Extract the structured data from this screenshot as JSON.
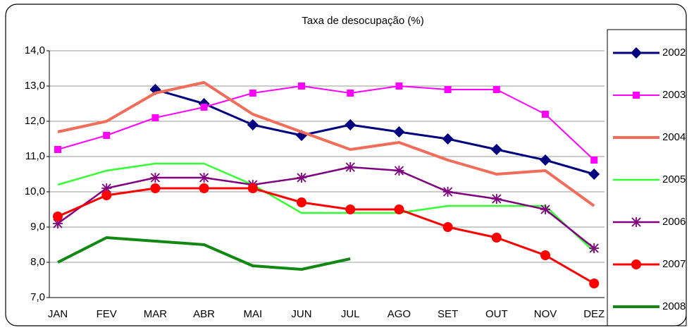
{
  "chart_data": {
    "type": "line",
    "title": "Taxa de desocupação (%)",
    "categories": [
      "JAN",
      "FEV",
      "MAR",
      "ABR",
      "MAI",
      "JUN",
      "JUL",
      "AGO",
      "SET",
      "OUT",
      "NOV",
      "DEZ"
    ],
    "ylim": [
      7,
      14
    ],
    "yticks": [
      {
        "value": 7,
        "label": "7,0"
      },
      {
        "value": 8,
        "label": "8,0"
      },
      {
        "value": 9,
        "label": "9,0"
      },
      {
        "value": 10,
        "label": "10,0"
      },
      {
        "value": 11,
        "label": "11,0"
      },
      {
        "value": 12,
        "label": "12,0"
      },
      {
        "value": 13,
        "label": "13,0"
      },
      {
        "value": 14,
        "label": "14,0"
      }
    ],
    "grid": true,
    "legend": "right",
    "series": [
      {
        "name": "2002",
        "color": "#000080",
        "marker": "diamond",
        "line_width": 3,
        "values": [
          null,
          null,
          12.9,
          12.5,
          11.9,
          11.6,
          11.9,
          11.7,
          11.5,
          11.2,
          10.9,
          10.5
        ]
      },
      {
        "name": "2003",
        "color": "#ff00ff",
        "marker": "square",
        "line_width": 2,
        "values": [
          11.2,
          11.6,
          12.1,
          12.4,
          12.8,
          13.0,
          12.8,
          13.0,
          12.9,
          12.9,
          12.2,
          10.9
        ]
      },
      {
        "name": "2004",
        "color": "#f26c5a",
        "marker": "none",
        "line_width": 4,
        "values": [
          11.7,
          12.0,
          12.8,
          13.1,
          12.2,
          11.7,
          11.2,
          11.4,
          10.9,
          10.5,
          10.6,
          9.6
        ]
      },
      {
        "name": "2005",
        "color": "#33ff33",
        "marker": "none",
        "line_width": 2.5,
        "values": [
          10.2,
          10.6,
          10.8,
          10.8,
          10.2,
          9.4,
          9.4,
          9.4,
          9.6,
          9.6,
          9.6,
          8.3
        ]
      },
      {
        "name": "2006",
        "color": "#800080",
        "marker": "star",
        "line_width": 2.5,
        "values": [
          9.1,
          10.1,
          10.4,
          10.4,
          10.2,
          10.4,
          10.7,
          10.6,
          10.0,
          9.8,
          9.5,
          8.4
        ]
      },
      {
        "name": "2007",
        "color": "#ff0000",
        "marker": "circle",
        "line_width": 3,
        "values": [
          9.3,
          9.9,
          10.1,
          10.1,
          10.1,
          9.7,
          9.5,
          9.5,
          9.0,
          8.7,
          8.2,
          7.4
        ]
      },
      {
        "name": "2008",
        "color": "#118811",
        "marker": "none",
        "line_width": 4,
        "values": [
          8.0,
          8.7,
          8.6,
          8.5,
          7.9,
          7.8,
          8.1,
          null,
          null,
          null,
          null,
          null
        ]
      }
    ]
  }
}
